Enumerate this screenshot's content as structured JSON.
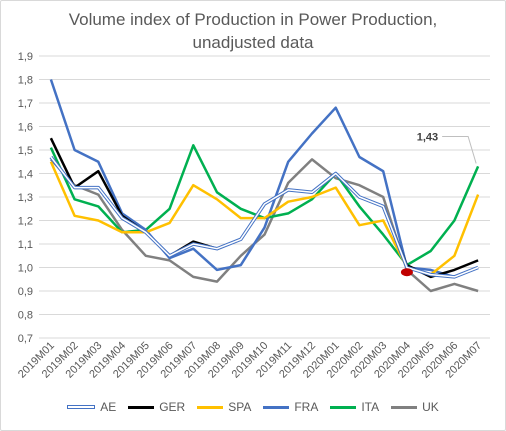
{
  "title_lines": [
    "Volume index of Production in Power Production,",
    "unadjusted data"
  ],
  "chart_data": {
    "type": "line",
    "title": "Volume index of Production in Power Production, unadjusted data",
    "categories": [
      "2019M01",
      "2019M02",
      "2019M03",
      "2019M04",
      "2019M05",
      "2019M06",
      "2019M07",
      "2019M08",
      "2019M09",
      "2019M10",
      "2019M11",
      "2019M12",
      "2020M01",
      "2020M02",
      "2020M03",
      "2020M04",
      "2020M05",
      "2020M06",
      "2020M07"
    ],
    "y_ticks": [
      "0,7",
      "0,8",
      "0,9",
      "1,0",
      "1,1",
      "1,2",
      "1,3",
      "1,4",
      "1,5",
      "1,6",
      "1,7",
      "1,8",
      "1,9"
    ],
    "ylim": [
      0.7,
      1.9
    ],
    "grid": true,
    "legend_position": "bottom",
    "series": [
      {
        "name": "AE",
        "color": "#4472c4",
        "style": "hollow",
        "values": [
          1.47,
          1.34,
          1.34,
          1.21,
          1.15,
          1.05,
          1.1,
          1.08,
          1.12,
          1.27,
          1.33,
          1.32,
          1.4,
          1.3,
          1.26,
          1.0,
          0.97,
          0.96,
          1.0
        ]
      },
      {
        "name": "GER",
        "color": "#000000",
        "values": [
          1.55,
          1.34,
          1.41,
          1.22,
          1.15,
          1.05,
          1.11,
          1.08,
          1.12,
          1.27,
          1.33,
          1.32,
          1.4,
          1.3,
          1.26,
          1.01,
          0.96,
          0.99,
          1.03
        ]
      },
      {
        "name": "SPA",
        "color": "#ffc000",
        "values": [
          1.45,
          1.22,
          1.2,
          1.15,
          1.15,
          1.19,
          1.35,
          1.29,
          1.21,
          1.21,
          1.28,
          1.3,
          1.34,
          1.18,
          1.2,
          1.0,
          0.97,
          1.05,
          1.31
        ]
      },
      {
        "name": "FRA",
        "color": "#4472c4",
        "values": [
          1.8,
          1.5,
          1.45,
          1.23,
          1.16,
          1.04,
          1.08,
          0.99,
          1.01,
          1.17,
          1.45,
          1.57,
          1.68,
          1.47,
          1.41,
          1.0,
          0.99,
          0.96,
          1.0
        ]
      },
      {
        "name": "ITA",
        "color": "#00b050",
        "values": [
          1.51,
          1.29,
          1.26,
          1.15,
          1.16,
          1.25,
          1.52,
          1.32,
          1.25,
          1.21,
          1.23,
          1.29,
          1.4,
          1.26,
          1.14,
          1.01,
          1.07,
          1.2,
          1.43
        ]
      },
      {
        "name": "UK",
        "color": "#808080",
        "values": [
          1.46,
          1.35,
          1.31,
          1.16,
          1.05,
          1.03,
          0.96,
          0.94,
          1.05,
          1.14,
          1.36,
          1.46,
          1.38,
          1.35,
          1.3,
          0.99,
          0.9,
          0.93,
          0.9
        ]
      }
    ],
    "annotations": [
      {
        "text": "1,43",
        "series": "ITA",
        "category": "2020M07",
        "value": 1.43
      }
    ],
    "highlight_marker": {
      "category": "2020M04",
      "value": 0.98,
      "color": "#c00000"
    }
  }
}
